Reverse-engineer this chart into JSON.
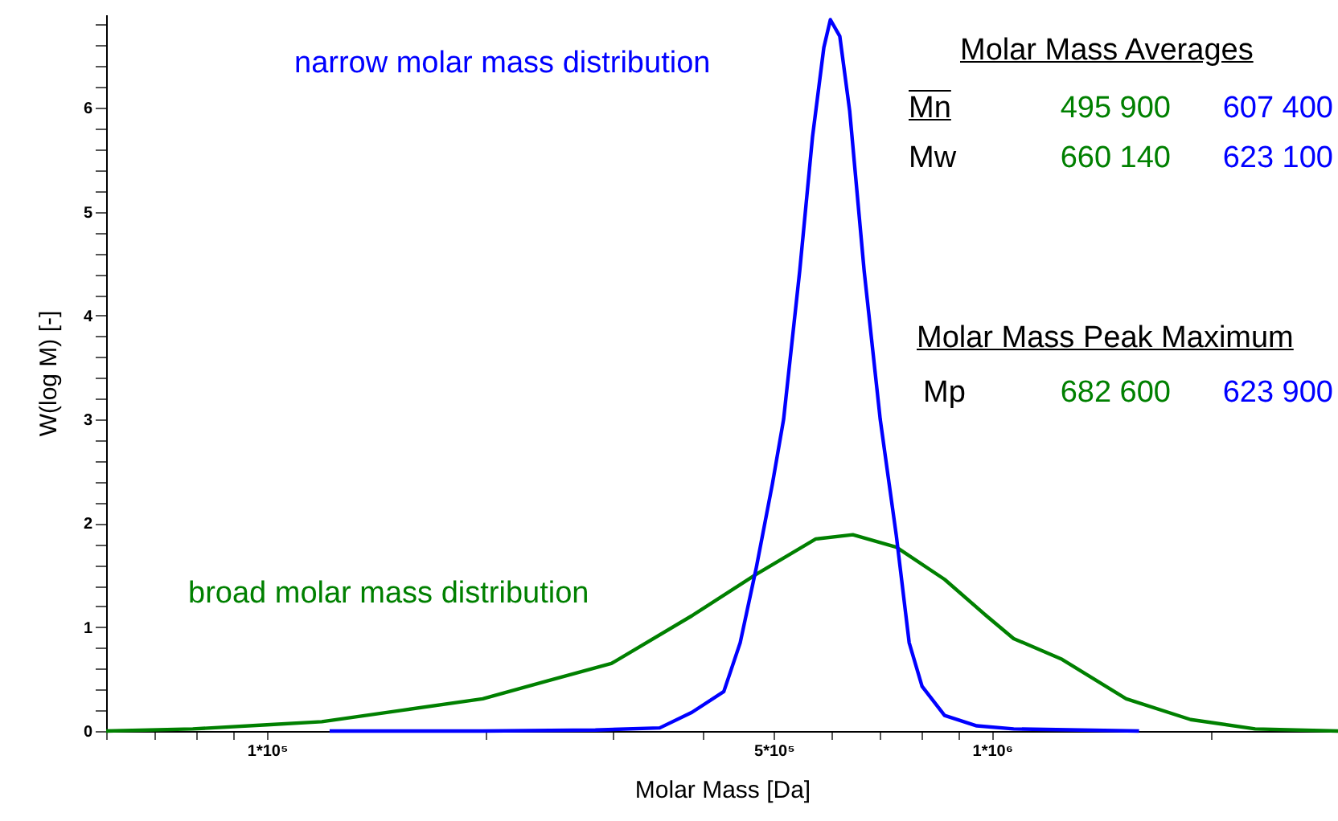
{
  "chart_data": {
    "type": "line",
    "xlabel": "Molar Mass [Da]",
    "ylabel": "W(log M)  [-]",
    "log": "x",
    "grid": false,
    "line_style": "solid",
    "marker": "none",
    "xlim": [
      60000,
      3000000
    ],
    "xticks": [
      {
        "value": 60000,
        "label": null
      },
      {
        "value": 70000,
        "label": null
      },
      {
        "value": 80000,
        "label": null
      },
      {
        "value": 90000,
        "label": null
      },
      {
        "value": 100000,
        "label": "1*10⁵"
      },
      {
        "value": 200000,
        "label": null
      },
      {
        "value": 300000,
        "label": null
      },
      {
        "value": 400000,
        "label": null
      },
      {
        "value": 500000,
        "label": "5*10⁵"
      },
      {
        "value": 600000,
        "label": null
      },
      {
        "value": 700000,
        "label": null
      },
      {
        "value": 800000,
        "label": null
      },
      {
        "value": 900000,
        "label": null
      },
      {
        "value": 1000000,
        "label": "1*10⁶"
      },
      {
        "value": 2000000,
        "label": null
      },
      {
        "value": 3000000,
        "label": null
      }
    ],
    "ylim": [
      0,
      6.9
    ],
    "yticks": [
      0,
      {
        "value": 0.2,
        "label": null
      },
      {
        "value": 0.4,
        "label": null
      },
      {
        "value": 0.6,
        "label": null
      },
      {
        "value": 0.8,
        "label": null
      },
      1,
      {
        "value": 1.2,
        "label": null
      },
      {
        "value": 1.4,
        "label": null
      },
      {
        "value": 1.6,
        "label": null
      },
      {
        "value": 1.8,
        "label": null
      },
      2,
      {
        "value": 2.2,
        "label": null
      },
      {
        "value": 2.4,
        "label": null
      },
      {
        "value": 2.6,
        "label": null
      },
      {
        "value": 2.8,
        "label": null
      },
      3,
      {
        "value": 3.2,
        "label": null
      },
      {
        "value": 3.4,
        "label": null
      },
      {
        "value": 3.6,
        "label": null
      },
      {
        "value": 3.8,
        "label": null
      },
      4,
      {
        "value": 4.2,
        "label": null
      },
      {
        "value": 4.4,
        "label": null
      },
      {
        "value": 4.6,
        "label": null
      },
      {
        "value": 4.8,
        "label": null
      },
      5,
      {
        "value": 5.2,
        "label": null
      },
      {
        "value": 5.4,
        "label": null
      },
      {
        "value": 5.6,
        "label": null
      },
      {
        "value": 5.8,
        "label": null
      },
      6,
      {
        "value": 6.2,
        "label": null
      },
      {
        "value": 6.4,
        "label": null
      },
      {
        "value": 6.6,
        "label": null
      },
      {
        "value": 6.8,
        "label": null
      }
    ],
    "series": [
      {
        "name": "broad molar mass distribution",
        "color": "#008000",
        "x": [
          60000,
          79000,
          100000,
          119000,
          153700,
          198400,
          243000,
          298500,
          385500,
          472900,
          571300,
          642700,
          737900,
          860100,
          982000,
          1071000,
          1249000,
          1531000,
          1879000,
          2306000,
          3000000
        ],
        "values": [
          0,
          0.02,
          0.06,
          0.09,
          0.2,
          0.31,
          0.48,
          0.65,
          1.11,
          1.51,
          1.85,
          1.89,
          1.77,
          1.46,
          1.11,
          0.89,
          0.69,
          0.31,
          0.11,
          0.02,
          0
        ]
      },
      {
        "name": "narrow molar mass distribution",
        "color": "#0000ff",
        "x": [
          122000,
          198400,
          283700,
          348000,
          385500,
          426600,
          449400,
          472900,
          497800,
          515800,
          542900,
          565400,
          586100,
          598400,
          616600,
          636300,
          666200,
          701100,
          737900,
          768600,
          800700,
          860100,
          952600,
          1071000,
          1595000
        ],
        "values": [
          0,
          0,
          0.01,
          0.03,
          0.18,
          0.38,
          0.85,
          1.57,
          2.38,
          3.0,
          4.43,
          5.72,
          6.58,
          6.85,
          6.69,
          5.97,
          4.43,
          3.0,
          1.88,
          0.85,
          0.43,
          0.15,
          0.05,
          0.02,
          0
        ]
      }
    ],
    "annotations": [
      "Molar Mass Averages",
      "Mn",
      "495 900",
      "607 400",
      "Mw",
      "660 140",
      "623 100",
      "Molar Mass Peak Maximum",
      "Mp",
      "682 600",
      "623 900"
    ]
  }
}
